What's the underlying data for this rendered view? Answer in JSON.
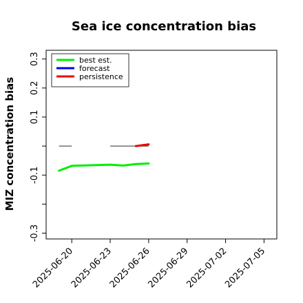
{
  "chart_data": {
    "type": "line",
    "title": "Sea ice concentration bias",
    "xlabel": "",
    "ylabel": "MIZ concentration bias",
    "x_ticks": [
      "2025-06-20",
      "2025-06-23",
      "2025-06-26",
      "2025-06-29",
      "2025-07-02",
      "2025-07-05"
    ],
    "highlight_tick": "2025-06-26",
    "highlight_color": "#228b22",
    "xlim": [
      "2025-06-18",
      "2025-07-06"
    ],
    "y_ticks": [
      -0.3,
      -0.1,
      0.1,
      0.2,
      0.3
    ],
    "y_ticks_minor": [
      -0.2,
      0.0
    ],
    "ylim": [
      -0.32,
      0.33
    ],
    "grid": false,
    "legend_position": "upper-left",
    "reference_segments": [
      {
        "x": [
          "2025-06-19",
          "2025-06-20"
        ],
        "y": [
          0.0,
          0.0
        ],
        "color": "#555555"
      },
      {
        "x": [
          "2025-06-23",
          "2025-06-26"
        ],
        "y": [
          0.0,
          0.0
        ],
        "color": "#555555"
      }
    ],
    "series": [
      {
        "name": "best est.",
        "color": "#00ee00",
        "x": [
          "2025-06-19",
          "2025-06-20",
          "2025-06-23",
          "2025-06-24",
          "2025-06-25",
          "2025-06-26"
        ],
        "y": [
          -0.085,
          -0.068,
          -0.064,
          -0.067,
          -0.062,
          -0.06
        ]
      },
      {
        "name": "forecast",
        "color": "#0000ee",
        "x": [],
        "y": []
      },
      {
        "name": "persistence",
        "color": "#ee0000",
        "x": [
          "2025-06-25",
          "2025-06-26"
        ],
        "y": [
          0.0,
          0.006
        ]
      }
    ]
  }
}
